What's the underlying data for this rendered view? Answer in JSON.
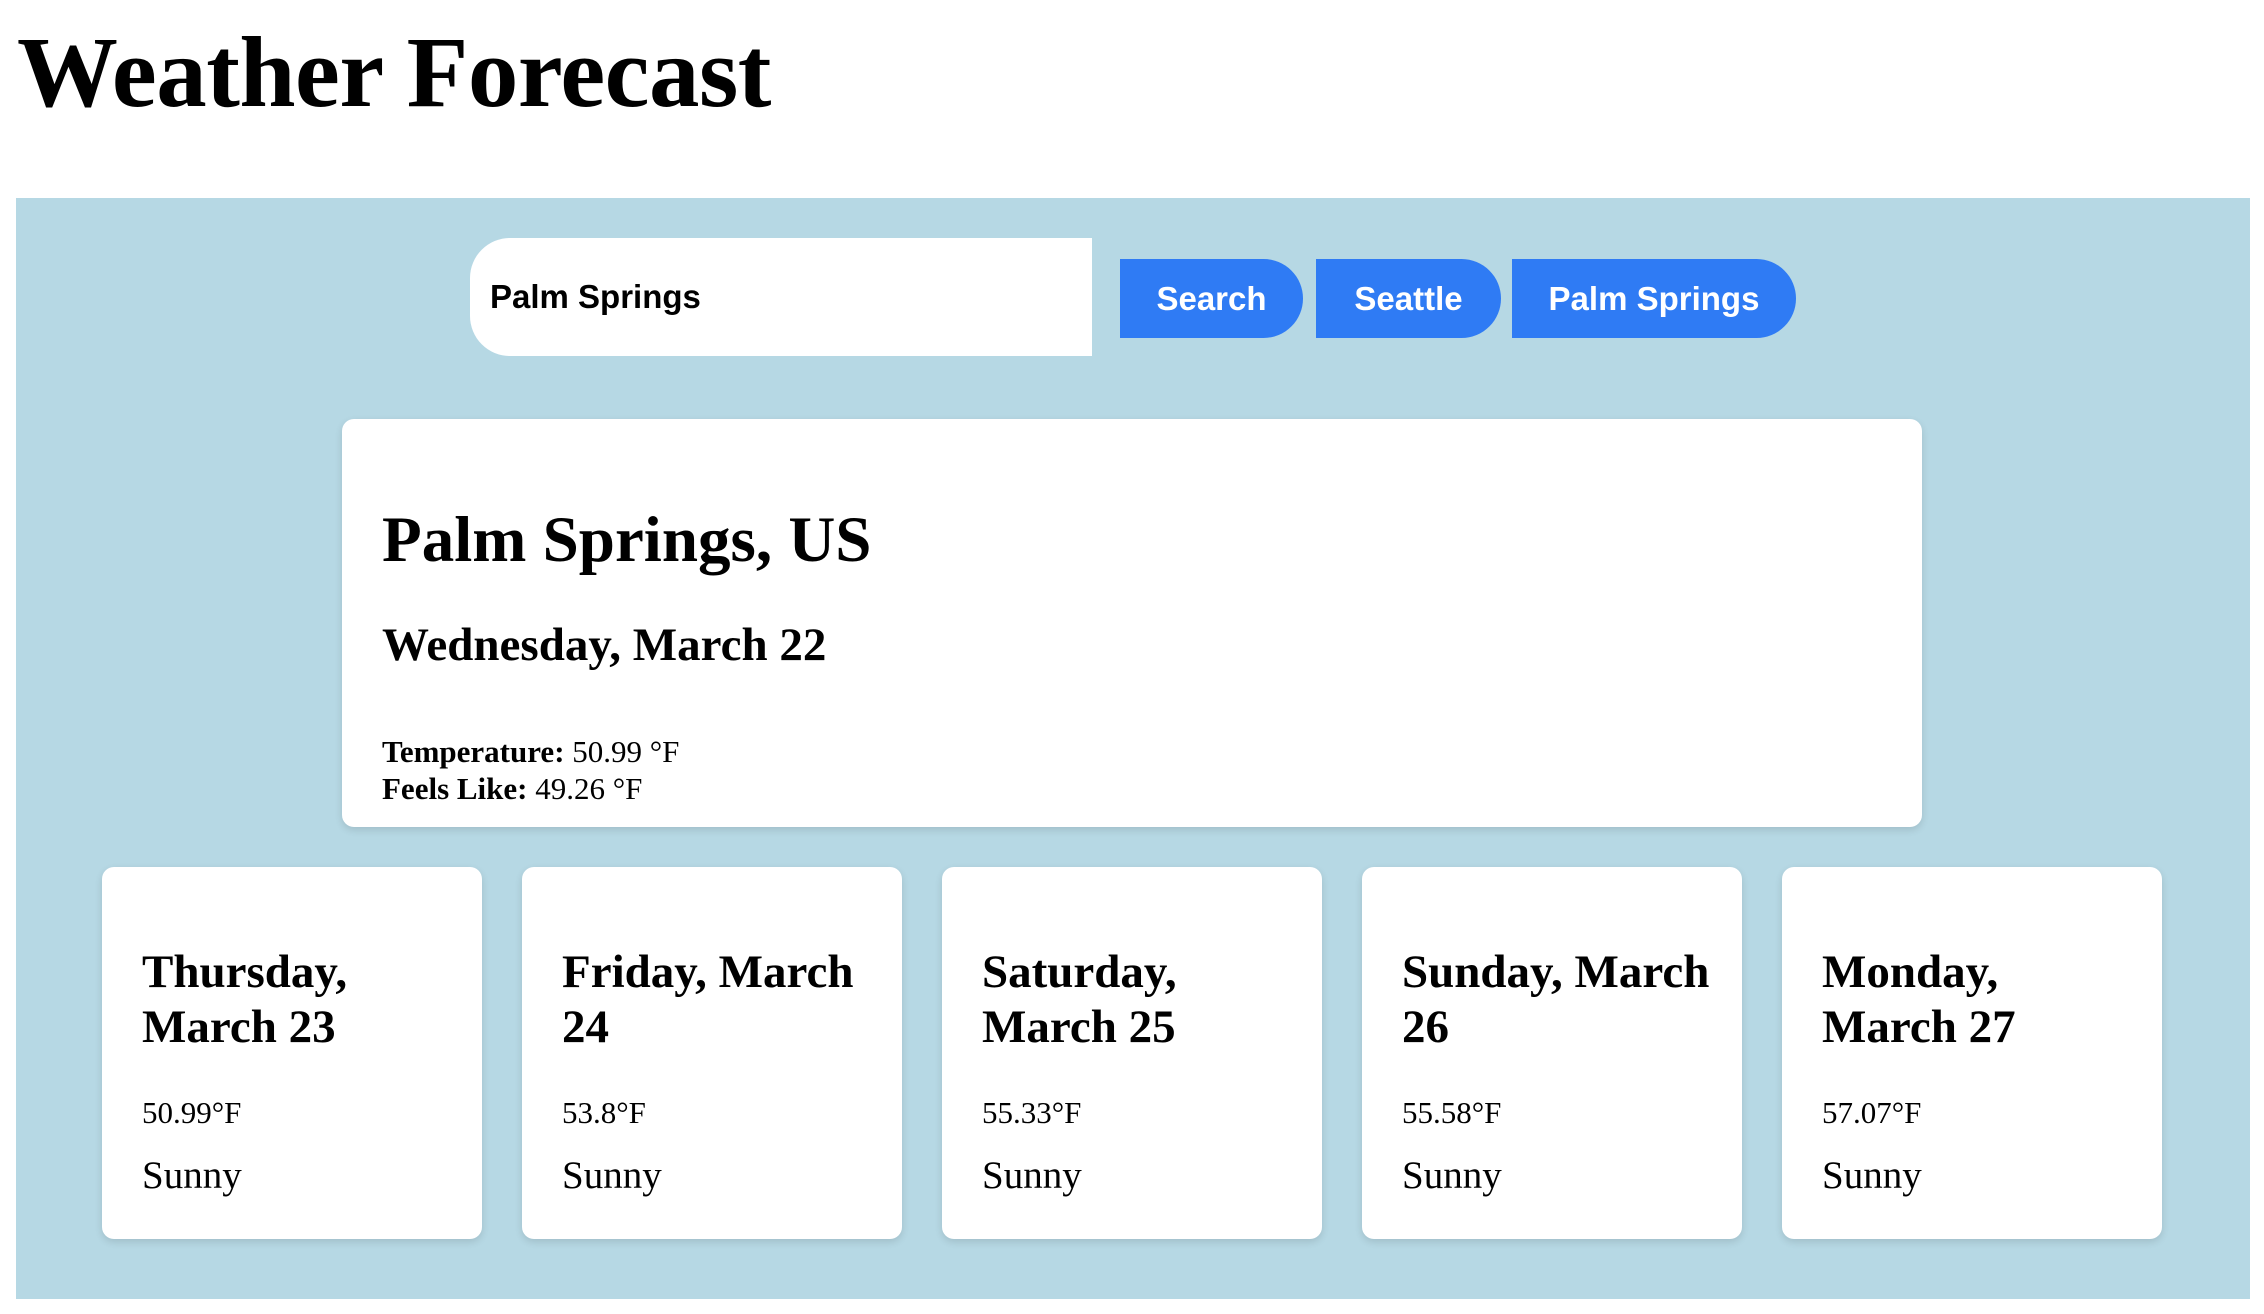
{
  "header": {
    "title": "Weather Forecast"
  },
  "search": {
    "value": "Palm Springs",
    "search_label": "Search",
    "quick_cities": [
      "Seattle",
      "Palm Springs"
    ]
  },
  "current": {
    "city": "Palm Springs, US",
    "date": "Wednesday, March 22",
    "temperature_label": "Temperature:",
    "temperature_value": "50.99 °F",
    "feels_like_label": "Feels Like:",
    "feels_like_value": "49.26 °F"
  },
  "forecast": [
    {
      "date": "Thursday, March 23",
      "temp": "50.99°F",
      "condition": "Sunny"
    },
    {
      "date": "Friday, March 24",
      "temp": "53.8°F",
      "condition": "Sunny"
    },
    {
      "date": "Saturday, March 25",
      "temp": "55.33°F",
      "condition": "Sunny"
    },
    {
      "date": "Sunday, March 26",
      "temp": "55.58°F",
      "condition": "Sunny"
    },
    {
      "date": "Monday, March 27",
      "temp": "57.07°F",
      "condition": "Sunny"
    }
  ],
  "colors": {
    "panel_background": "#b6d8e4",
    "button_accent": "#2f7bf4",
    "card_background": "#ffffff"
  }
}
